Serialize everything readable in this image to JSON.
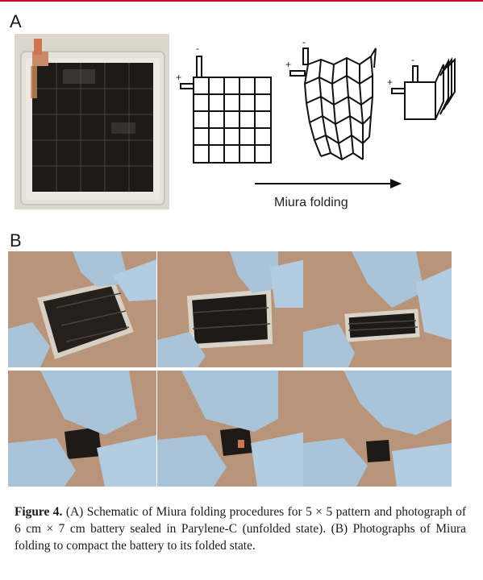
{
  "panels": {
    "a_label": "A",
    "b_label": "B"
  },
  "schematic": {
    "plus": "+",
    "minus": "-",
    "arrow_label": "Miura folding"
  },
  "caption": {
    "figure_label": "Figure 4.",
    "text": " (A) Schematic of Miura folding procedures for 5 × 5 pattern and photograph of 6 cm × 7 cm battery sealed in Parylene-C (unfolded state). (B) Photographs of Miura folding to compact the battery to its folded state."
  },
  "colors": {
    "accent_line": "#c8102e",
    "glove": "#a9c3d9",
    "battery": "#1e1a18",
    "background_board": "#b9967a"
  }
}
